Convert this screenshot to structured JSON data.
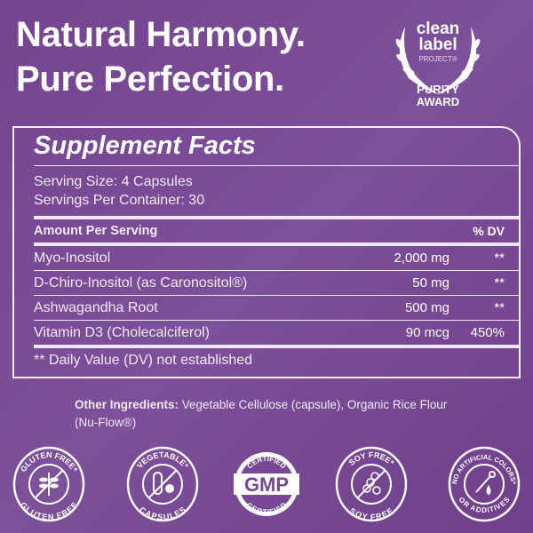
{
  "headline": {
    "line1": "Natural Harmony.",
    "line2": "Pure Perfection."
  },
  "award": {
    "line1": "clean",
    "line2": "label",
    "line3": "PROJECT®",
    "line4": "PURITY",
    "line5": "AWARD"
  },
  "facts": {
    "title": "Supplement Facts",
    "serving_size": "Serving Size: 4 Capsules",
    "servings_per_container": "Servings Per Container: 30",
    "header_amount": "Amount Per Serving",
    "header_dv": "% DV",
    "rows": [
      {
        "name": "Myo-Inositol",
        "amount": "2,000 mg",
        "dv": "**"
      },
      {
        "name": "D-Chiro-Inositol (as Caronositol®)",
        "amount": "50 mg",
        "dv": "**"
      },
      {
        "name": "Ashwagandha Root",
        "amount": "500 mg",
        "dv": "**"
      },
      {
        "name": "Vitamin D3 (Cholecalciferol)",
        "amount": "90 mcg",
        "dv": "450%"
      }
    ],
    "footnote": "** Daily Value (DV) not established"
  },
  "other_ingredients": {
    "label": "Other Ingredients:",
    "text": "Vegetable Cellulose (capsule), Organic Rice Flour (Nu-Flow®)"
  },
  "badges": [
    {
      "icon": "wheat-icon",
      "top": "GLUTEN FREE*",
      "bottom": "GLUTEN FREE"
    },
    {
      "icon": "capsule-icon",
      "top": "VEGETABLE*",
      "bottom": "CAPSULES"
    },
    {
      "icon": "gmp-seal-icon",
      "top": "CERTIFIED",
      "center": "GMP",
      "bottom": "CERTIFIED"
    },
    {
      "icon": "soybean-icon",
      "top": "SOY FREE*",
      "bottom": "SOY FREE"
    },
    {
      "icon": "dropper-icon",
      "top": "NO ARTIFICIAL COLORS*",
      "bottom": "OR ADDITIVES"
    }
  ],
  "colors": {
    "background": "#774895",
    "foreground": "#ffffff"
  }
}
